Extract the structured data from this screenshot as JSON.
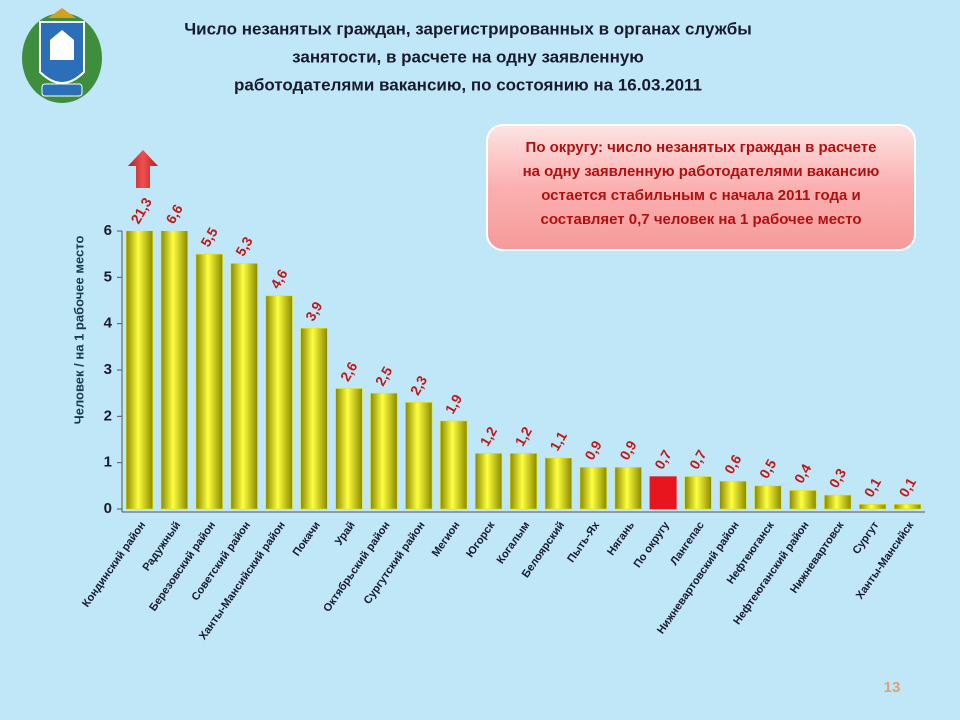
{
  "chart_data": {
    "type": "bar",
    "title": [
      "Число незанятых граждан, зарегистрированных в органах службы",
      "занятости, в расчете на одну заявленную",
      "работодателями вакансию, по состоянию на 16.03.2011"
    ],
    "callout": [
      "По округу: число незанятых граждан в расчете",
      "на одну заявленную работодателями вакансию",
      "остается стабильным с начала 2011 года и",
      "составляет 0,7 человек на 1 рабочее место"
    ],
    "ylabel": "Человек / на 1 рабочее место",
    "page_number": "13",
    "categories": [
      "Кондинский район",
      "Радужный",
      "Березовский район",
      "Советский район",
      "Ханты-Мансийский район",
      "Покачи",
      "Урай",
      "Октябрьский район",
      "Сургутский район",
      "Мегион",
      "Югорск",
      "Когалым",
      "Белоярский",
      "Пыть-Ях",
      "Нягань",
      "По округу",
      "Лангепас",
      "Нижневартовский район",
      "Нефтеюганск",
      "Нефтеюганский район",
      "Нижневартовск",
      "Сургут",
      "Ханты-Мансийск"
    ],
    "values": [
      21.3,
      6.6,
      5.5,
      5.3,
      4.6,
      3.9,
      2.6,
      2.5,
      2.3,
      1.9,
      1.2,
      1.2,
      1.1,
      0.9,
      0.9,
      0.7,
      0.7,
      0.6,
      0.5,
      0.4,
      0.3,
      0.1,
      0.1
    ],
    "value_labels": [
      "21,3",
      "6,6",
      "5,5",
      "5,3",
      "4,6",
      "3,9",
      "2,6",
      "2,5",
      "2,3",
      "1,9",
      "1,2",
      "1,2",
      "1,1",
      "0,9",
      "0,9",
      "0,7",
      "0,7",
      "0,6",
      "0,5",
      "0,4",
      "0,3",
      "0,1",
      "0,1"
    ],
    "colors": [
      "#e6e600",
      "#e6e600",
      "#e6e600",
      "#e6e600",
      "#e6e600",
      "#e6e600",
      "#e6e600",
      "#e6e600",
      "#e6e600",
      "#e6e600",
      "#e6e600",
      "#e6e600",
      "#e6e600",
      "#e6e600",
      "#e6e600",
      "#e8141e",
      "#e6e600",
      "#e6e600",
      "#e6e600",
      "#e6e600",
      "#e6e600",
      "#e6e600",
      "#e6e600"
    ],
    "ylim": [
      0,
      6
    ],
    "yticks": [
      0,
      1,
      2,
      3,
      4,
      5,
      6
    ],
    "grid": false
  }
}
